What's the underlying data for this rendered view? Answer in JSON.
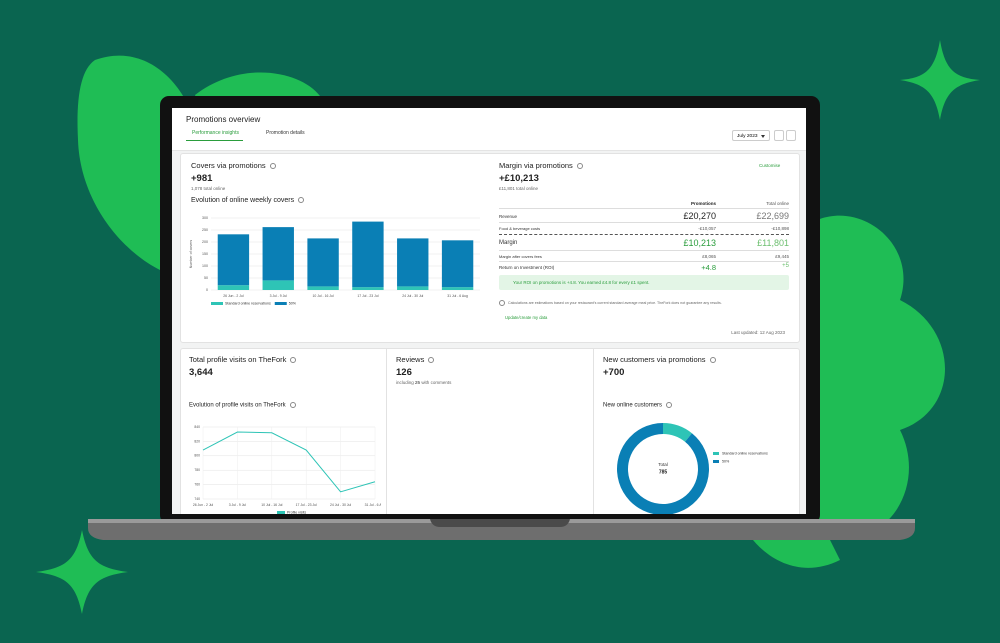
{
  "header": {
    "title": "Promotions overview",
    "tabs": [
      "Performance insights",
      "Promotion details"
    ],
    "period": "July 2023"
  },
  "covers": {
    "title": "Covers via promotions",
    "value": "+981",
    "subtitle": "1,078 total online",
    "chart_title": "Evolution of online weekly covers"
  },
  "margin": {
    "title": "Margin via promotions",
    "action": "Customise",
    "value": "+£10,213",
    "subtitle": "£11,801 total online",
    "columns": [
      "Promotions",
      "Total online"
    ],
    "rows": [
      {
        "label": "Revenue",
        "promotions": "£20,270",
        "total": "£22,699"
      },
      {
        "label": "Food & beverage costs",
        "promotions": "-£10,057",
        "total": "-£10,898"
      },
      {
        "label": "Margin",
        "promotions": "£10,213",
        "total": "£11,801"
      },
      {
        "label": "Margin after covers fees",
        "promotions": "£8,065",
        "total": "£9,445"
      },
      {
        "label": "Return on Investment (ROI)",
        "promotions": "+4.8",
        "total": "+5"
      }
    ],
    "banner": "Your ROI on promotions is +4.8. You earned £4.8 for every £1 spent.",
    "note": "Calculations are estimations based on your restaurant's current standard average meal price. TheFork does not guarantee any results.",
    "link": "Update/create my data",
    "last_updated": "Last updated: 12 Aug 2023"
  },
  "visits": {
    "title": "Total profile visits on TheFork",
    "value": "3,644",
    "chart_title": "Evolution of profile visits on TheFork"
  },
  "reviews": {
    "title": "Reviews",
    "value": "126",
    "subtitle_prefix": "including",
    "subtitle_count": "25",
    "subtitle_suffix": "with comments"
  },
  "customers": {
    "title": "New customers via promotions",
    "value": "+700",
    "chart_title": "New online customers"
  },
  "chart_data": [
    {
      "type": "bar",
      "stacked": true,
      "ylabel": "Number of covers",
      "categories": [
        "26 Jun - 2 Jul",
        "3 Jul - 9 Jul",
        "10 Jul - 16 Jul",
        "17 Jul - 23 Jul",
        "24 Jul - 30 Jul",
        "31 Jul - 6 Aug"
      ],
      "series": [
        {
          "name": "Standard online reservations",
          "color": "#2ec4b6",
          "values": [
            20,
            40,
            15,
            12,
            15,
            12
          ]
        },
        {
          "name": "50%",
          "color": "#0a7fb5",
          "values": [
            212,
            222,
            200,
            273,
            200,
            195
          ]
        }
      ],
      "ylim": [
        0,
        300
      ],
      "yticks": [
        0,
        50,
        100,
        150,
        200,
        250,
        300
      ],
      "grid": true
    },
    {
      "type": "line",
      "categories": [
        "26 Jun - 2 Jul",
        "3 Jul - 9 Jul",
        "10 Jul - 16 Jul",
        "17 Jul - 23 Jul",
        "24 Jul - 30 Jul",
        "31 Jul - 6 Aug"
      ],
      "series": [
        {
          "name": "Profile visits",
          "color": "#2ec4b6",
          "values": [
            808,
            833,
            832,
            808,
            750,
            764
          ]
        }
      ],
      "ylim": [
        740,
        840
      ],
      "yticks": [
        740,
        760,
        780,
        800,
        820,
        840
      ],
      "grid": true
    },
    {
      "type": "pie",
      "donut": true,
      "categories": [
        "Standard online reservations",
        "50%"
      ],
      "values": [
        85,
        700
      ],
      "colors": [
        "#2ec4b6",
        "#0a7fb5"
      ],
      "center_label": "Total",
      "center_value": "785"
    }
  ]
}
